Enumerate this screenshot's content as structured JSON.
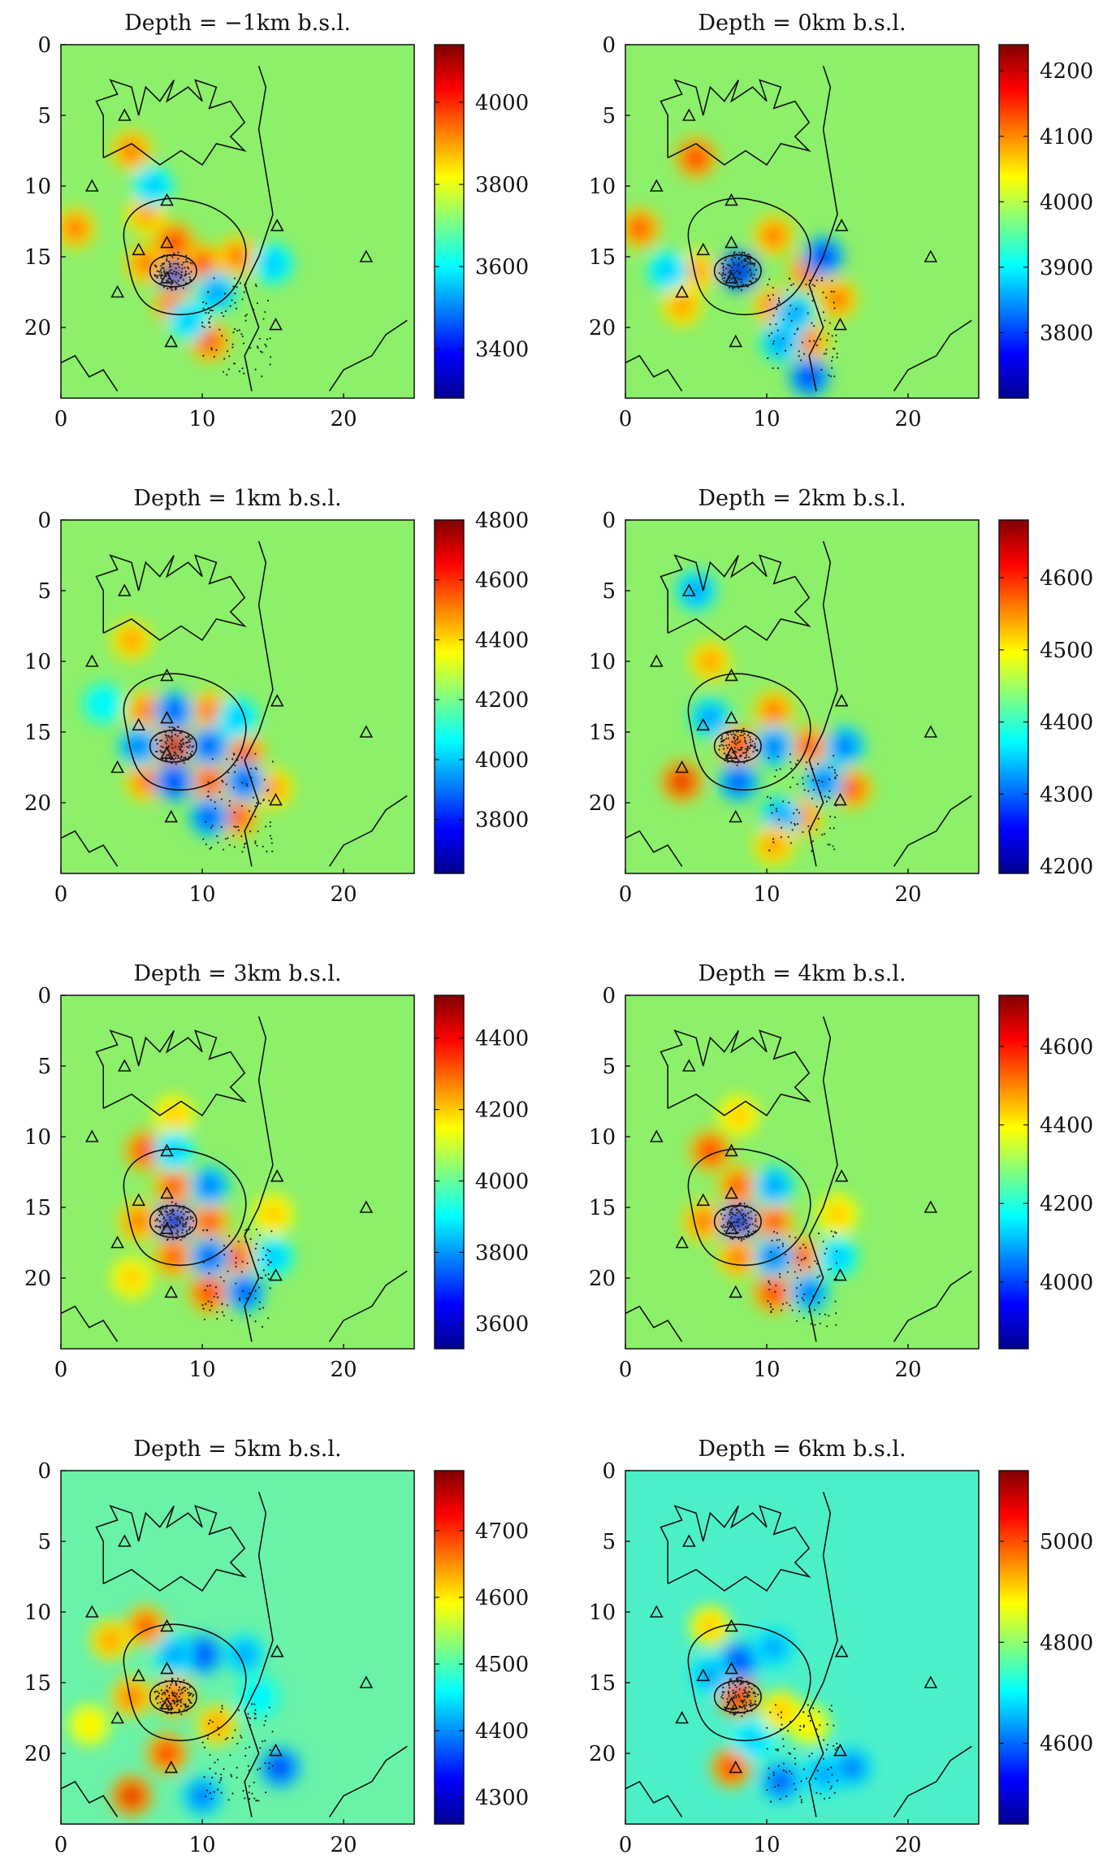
{
  "chart_data": [
    {
      "type": "heatmap",
      "title": "Depth = −1km b.s.l.",
      "x_ticks": [
        "0",
        "10",
        "20"
      ],
      "y_ticks": [
        "0",
        "5",
        "10",
        "15",
        "20"
      ],
      "xlim": [
        0,
        25
      ],
      "ylim": [
        25,
        0
      ],
      "colorbar": {
        "min": 3280,
        "max": 4140,
        "ticks": [
          "3400",
          "3600",
          "3800",
          "4000"
        ]
      }
    },
    {
      "type": "heatmap",
      "title": "Depth = 0km b.s.l.",
      "x_ticks": [
        "0",
        "10",
        "20"
      ],
      "y_ticks": [
        "0",
        "5",
        "10",
        "15",
        "20"
      ],
      "xlim": [
        0,
        25
      ],
      "ylim": [
        25,
        0
      ],
      "colorbar": {
        "min": 3700,
        "max": 4240,
        "ticks": [
          "3800",
          "3900",
          "4000",
          "4100",
          "4200"
        ]
      }
    },
    {
      "type": "heatmap",
      "title": "Depth = 1km b.s.l.",
      "x_ticks": [
        "0",
        "10",
        "20"
      ],
      "y_ticks": [
        "0",
        "5",
        "10",
        "15",
        "20"
      ],
      "xlim": [
        0,
        25
      ],
      "ylim": [
        25,
        0
      ],
      "colorbar": {
        "min": 3620,
        "max": 4800,
        "ticks": [
          "3800",
          "4000",
          "4200",
          "4400",
          "4600",
          "4800"
        ]
      }
    },
    {
      "type": "heatmap",
      "title": "Depth = 2km b.s.l.",
      "x_ticks": [
        "0",
        "10",
        "20"
      ],
      "y_ticks": [
        "0",
        "5",
        "10",
        "15",
        "20"
      ],
      "xlim": [
        0,
        25
      ],
      "ylim": [
        25,
        0
      ],
      "colorbar": {
        "min": 4190,
        "max": 4680,
        "ticks": [
          "4200",
          "4300",
          "4400",
          "4500",
          "4600"
        ]
      }
    },
    {
      "type": "heatmap",
      "title": "Depth = 3km b.s.l.",
      "x_ticks": [
        "0",
        "10",
        "20"
      ],
      "y_ticks": [
        "0",
        "5",
        "10",
        "15",
        "20"
      ],
      "xlim": [
        0,
        25
      ],
      "ylim": [
        25,
        0
      ],
      "colorbar": {
        "min": 3530,
        "max": 4520,
        "ticks": [
          "3600",
          "3800",
          "4000",
          "4200",
          "4400"
        ]
      }
    },
    {
      "type": "heatmap",
      "title": "Depth = 4km b.s.l.",
      "x_ticks": [
        "0",
        "10",
        "20"
      ],
      "y_ticks": [
        "0",
        "5",
        "10",
        "15",
        "20"
      ],
      "xlim": [
        0,
        25
      ],
      "ylim": [
        25,
        0
      ],
      "colorbar": {
        "min": 3830,
        "max": 4730,
        "ticks": [
          "4000",
          "4200",
          "4400",
          "4600"
        ]
      }
    },
    {
      "type": "heatmap",
      "title": "Depth = 5km b.s.l.",
      "x_ticks": [
        "0",
        "10",
        "20"
      ],
      "y_ticks": [
        "0",
        "5",
        "10",
        "15",
        "20"
      ],
      "xlim": [
        0,
        25
      ],
      "ylim": [
        25,
        0
      ],
      "colorbar": {
        "min": 4260,
        "max": 4790,
        "ticks": [
          "4300",
          "4400",
          "4500",
          "4600",
          "4700"
        ]
      }
    },
    {
      "type": "heatmap",
      "title": "Depth = 6km b.s.l.",
      "x_ticks": [
        "0",
        "10",
        "20"
      ],
      "y_ticks": [
        "0",
        "5",
        "10",
        "15",
        "20"
      ],
      "xlim": [
        0,
        25
      ],
      "ylim": [
        25,
        0
      ],
      "colorbar": {
        "min": 4440,
        "max": 5140,
        "ticks": [
          "4600",
          "4800",
          "5000"
        ]
      }
    }
  ],
  "stations": [
    [
      4.5,
      5
    ],
    [
      2.2,
      10
    ],
    [
      7.5,
      11
    ],
    [
      5.5,
      14.5
    ],
    [
      7.5,
      14
    ],
    [
      7.5,
      16.5
    ],
    [
      4,
      17.5
    ],
    [
      7.8,
      21
    ],
    [
      15.3,
      12.8
    ],
    [
      15.2,
      19.8
    ],
    [
      21.6,
      15
    ]
  ],
  "colors": {
    "background_field": "#8df06a",
    "axis": "#111111",
    "contour": "#111111"
  }
}
